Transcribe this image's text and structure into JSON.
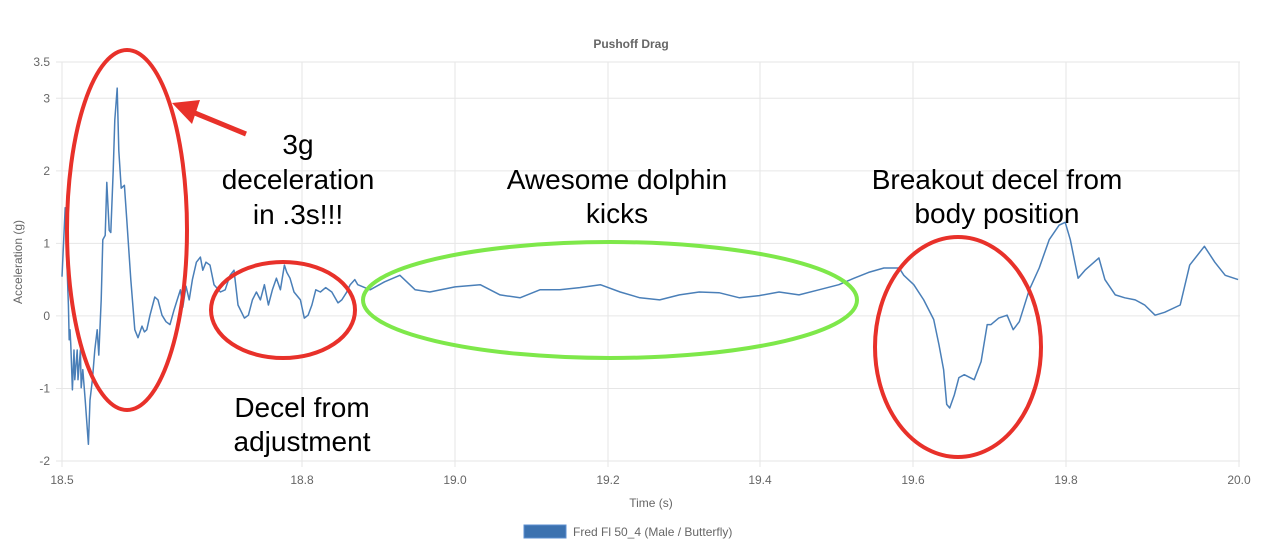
{
  "chart_data": {
    "type": "line",
    "title": "Pushoff Drag",
    "xlabel": "Time (s)",
    "ylabel": "Acceleration (g)",
    "xlim": [
      18.5,
      20.0
    ],
    "ylim": [
      -2,
      3.5
    ],
    "x_ticks": [
      "18.5",
      "18.8",
      "19.0",
      "19.2",
      "19.4",
      "19.6",
      "19.8",
      "20.0"
    ],
    "y_ticks": [
      "3.5",
      "3",
      "2",
      "1",
      "0",
      "-1",
      "-2"
    ],
    "grid": true,
    "legend_position": "bottom",
    "series": [
      {
        "name": "Fred Fl 50_4 (Male / Butterfly)",
        "color": "#4a7fb8",
        "points": [
          [
            18.5,
            0.54
          ],
          [
            18.504,
            1.49
          ],
          [
            18.506,
            0.77
          ],
          [
            18.508,
            0.15
          ],
          [
            18.509,
            -0.33
          ],
          [
            18.51,
            -0.19
          ],
          [
            18.511,
            -0.4
          ],
          [
            18.513,
            -1.02
          ],
          [
            18.515,
            -0.47
          ],
          [
            18.516,
            -0.88
          ],
          [
            18.519,
            -0.47
          ],
          [
            18.52,
            -0.88
          ],
          [
            18.523,
            -0.47
          ],
          [
            18.524,
            -0.99
          ],
          [
            18.526,
            -0.74
          ],
          [
            18.529,
            -1.16
          ],
          [
            18.533,
            -1.77
          ],
          [
            18.535,
            -1.16
          ],
          [
            18.538,
            -0.88
          ],
          [
            18.541,
            -0.47
          ],
          [
            18.544,
            -0.19
          ],
          [
            18.546,
            -0.54
          ],
          [
            18.549,
            0.22
          ],
          [
            18.551,
            1.05
          ],
          [
            18.554,
            1.11
          ],
          [
            18.556,
            1.84
          ],
          [
            18.559,
            1.18
          ],
          [
            18.561,
            1.15
          ],
          [
            18.564,
            2.0
          ],
          [
            18.566,
            2.7
          ],
          [
            18.569,
            3.14
          ],
          [
            18.571,
            2.28
          ],
          [
            18.574,
            1.76
          ],
          [
            18.578,
            1.8
          ],
          [
            18.581,
            1.32
          ],
          [
            18.586,
            0.5
          ],
          [
            18.591,
            -0.19
          ],
          [
            18.595,
            -0.3
          ],
          [
            18.6,
            -0.14
          ],
          [
            18.603,
            -0.22
          ],
          [
            18.606,
            -0.19
          ],
          [
            18.61,
            0.01
          ],
          [
            18.616,
            0.26
          ],
          [
            18.62,
            0.22
          ],
          [
            18.625,
            0.01
          ],
          [
            18.63,
            -0.08
          ],
          [
            18.635,
            -0.12
          ],
          [
            18.64,
            0.08
          ],
          [
            18.644,
            0.22
          ],
          [
            18.648,
            0.36
          ],
          [
            18.651,
            0.12
          ],
          [
            18.655,
            0.41
          ],
          [
            18.659,
            0.22
          ],
          [
            18.663,
            0.5
          ],
          [
            18.668,
            0.74
          ],
          [
            18.673,
            0.81
          ],
          [
            18.676,
            0.63
          ],
          [
            18.68,
            0.74
          ],
          [
            18.685,
            0.7
          ],
          [
            18.69,
            0.43
          ],
          [
            18.698,
            0.33
          ],
          [
            18.704,
            0.36
          ],
          [
            18.71,
            0.56
          ],
          [
            18.715,
            0.63
          ],
          [
            18.72,
            0.15
          ],
          [
            18.728,
            -0.03
          ],
          [
            18.733,
            0.01
          ],
          [
            18.738,
            0.22
          ],
          [
            18.743,
            0.33
          ],
          [
            18.748,
            0.22
          ],
          [
            18.753,
            0.43
          ],
          [
            18.758,
            0.15
          ],
          [
            18.763,
            0.36
          ],
          [
            18.768,
            0.52
          ],
          [
            18.773,
            0.36
          ],
          [
            18.778,
            0.7
          ],
          [
            18.781,
            0.6
          ],
          [
            18.785,
            0.52
          ],
          [
            18.79,
            0.33
          ],
          [
            18.798,
            0.22
          ],
          [
            18.803,
            -0.03
          ],
          [
            18.808,
            0.01
          ],
          [
            18.813,
            0.15
          ],
          [
            18.818,
            0.36
          ],
          [
            18.824,
            0.33
          ],
          [
            18.831,
            0.39
          ],
          [
            18.839,
            0.33
          ],
          [
            18.847,
            0.18
          ],
          [
            18.852,
            0.22
          ],
          [
            18.858,
            0.32
          ],
          [
            18.863,
            0.43
          ],
          [
            18.869,
            0.5
          ],
          [
            18.873,
            0.43
          ],
          [
            18.889,
            0.36
          ],
          [
            18.908,
            0.47
          ],
          [
            18.928,
            0.56
          ],
          [
            18.948,
            0.36
          ],
          [
            18.967,
            0.33
          ],
          [
            19.0,
            0.4
          ],
          [
            19.033,
            0.43
          ],
          [
            19.059,
            0.29
          ],
          [
            19.085,
            0.25
          ],
          [
            19.111,
            0.36
          ],
          [
            19.137,
            0.36
          ],
          [
            19.163,
            0.39
          ],
          [
            19.19,
            0.43
          ],
          [
            19.216,
            0.33
          ],
          [
            19.242,
            0.25
          ],
          [
            19.268,
            0.22
          ],
          [
            19.294,
            0.29
          ],
          [
            19.32,
            0.33
          ],
          [
            19.346,
            0.32
          ],
          [
            19.373,
            0.25
          ],
          [
            19.399,
            0.28
          ],
          [
            19.425,
            0.33
          ],
          [
            19.451,
            0.29
          ],
          [
            19.477,
            0.36
          ],
          [
            19.503,
            0.43
          ],
          [
            19.523,
            0.52
          ],
          [
            19.542,
            0.6
          ],
          [
            19.562,
            0.66
          ],
          [
            19.582,
            0.66
          ],
          [
            19.588,
            0.56
          ],
          [
            19.601,
            0.43
          ],
          [
            19.614,
            0.22
          ],
          [
            19.627,
            -0.05
          ],
          [
            19.634,
            -0.4
          ],
          [
            19.64,
            -0.74
          ],
          [
            19.644,
            -1.22
          ],
          [
            19.648,
            -1.27
          ],
          [
            19.654,
            -1.09
          ],
          [
            19.66,
            -0.85
          ],
          [
            19.667,
            -0.81
          ],
          [
            19.68,
            -0.88
          ],
          [
            19.689,
            -0.63
          ],
          [
            19.697,
            -0.12
          ],
          [
            19.702,
            -0.12
          ],
          [
            19.712,
            -0.03
          ],
          [
            19.723,
            0.01
          ],
          [
            19.731,
            -0.19
          ],
          [
            19.739,
            -0.08
          ],
          [
            19.752,
            0.36
          ],
          [
            19.765,
            0.66
          ],
          [
            19.778,
            1.05
          ],
          [
            19.791,
            1.25
          ],
          [
            19.799,
            1.29
          ],
          [
            19.805,
            1.05
          ],
          [
            19.814,
            0.52
          ],
          [
            19.822,
            0.63
          ],
          [
            19.838,
            0.8
          ],
          [
            19.845,
            0.5
          ],
          [
            19.857,
            0.29
          ],
          [
            19.868,
            0.25
          ],
          [
            19.88,
            0.22
          ],
          [
            19.891,
            0.15
          ],
          [
            19.903,
            0.01
          ],
          [
            19.914,
            0.05
          ],
          [
            19.932,
            0.15
          ],
          [
            19.943,
            0.7
          ],
          [
            19.96,
            0.96
          ],
          [
            19.972,
            0.74
          ],
          [
            19.984,
            0.56
          ],
          [
            19.999,
            0.5
          ]
        ]
      }
    ],
    "annotations": {
      "peak": [
        "3g",
        "deceleration",
        "in .3s!!!"
      ],
      "adjustment": [
        "Decel from",
        "adjustment"
      ],
      "kicks": [
        "Awesome dolphin",
        "kicks"
      ],
      "breakout": [
        "Breakout decel from",
        "body position"
      ],
      "circle_colors": {
        "red": "#e8312a",
        "green": "#7ee84a"
      }
    }
  }
}
